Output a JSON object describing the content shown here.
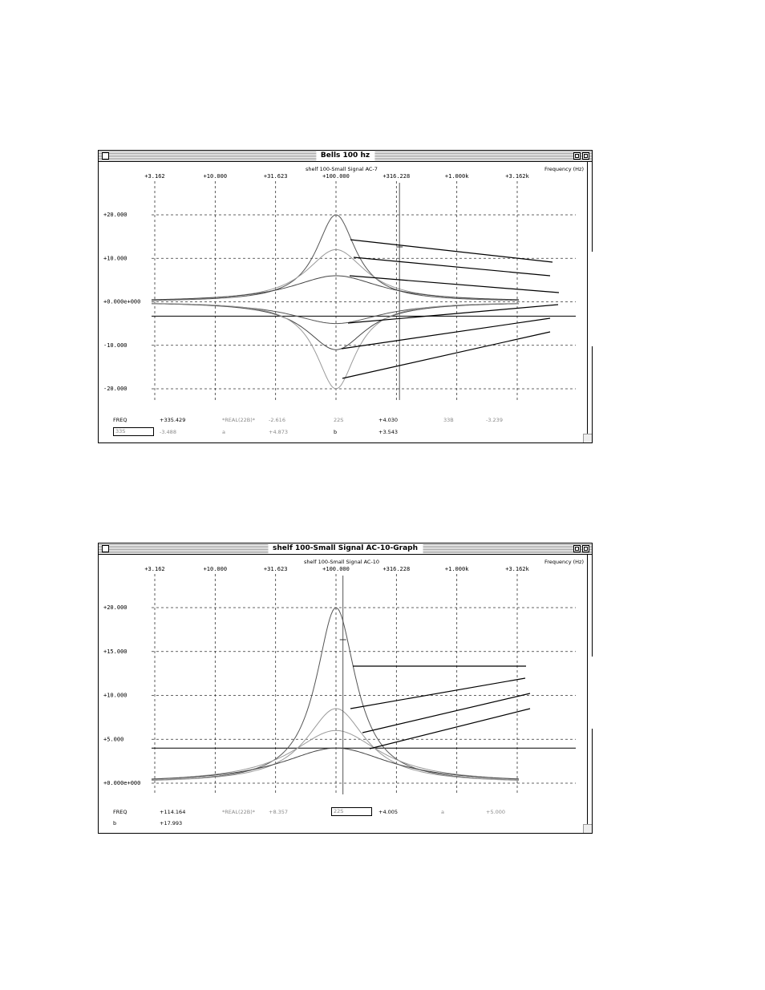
{
  "charts": [
    {
      "window_title": "Bells 100 hz",
      "subtitle": "shelf 100-Small Signal AC-7",
      "freq_label": "Frequency   (Hz)",
      "readout": {
        "row1": [
          "FREQ",
          "+335.429",
          "*REAL(22B)*",
          "-2.616",
          "22S",
          "+4.030",
          "33B",
          "-3.239"
        ],
        "row2": [
          "33S",
          "-3.488",
          "a",
          "+4.873",
          "b",
          "+3.543"
        ]
      },
      "chart_data": {
        "type": "line",
        "x_scale": "log",
        "xlim": [
          3.162,
          3162
        ],
        "ylim": [
          -20,
          20
        ],
        "x_tick_values": [
          3.162,
          10,
          31.623,
          100,
          316.228,
          1000,
          3162
        ],
        "x_tick_labels": [
          "+3.162",
          "+10.000",
          "+31.623",
          "+100.000",
          "+316.228",
          "+1.000k",
          "+3.162k"
        ],
        "y_tick_values": [
          20,
          10,
          0,
          -10,
          -20
        ],
        "y_tick_labels": [
          "+20.000",
          "+10.000",
          "+0.000e+000",
          "-10.000",
          "-20.000"
        ],
        "center_freq": 100,
        "series": [
          {
            "peak_db": 20,
            "width": 0.2,
            "color": "#555555"
          },
          {
            "peak_db": 12,
            "width": 0.3,
            "color": "#9a9a9a"
          },
          {
            "peak_db": 6,
            "width": 0.45,
            "color": "#444444"
          },
          {
            "peak_db": -5,
            "width": 0.45,
            "color": "#555555"
          },
          {
            "peak_db": -11,
            "width": 0.3,
            "color": "#444444"
          },
          {
            "peak_db": -20,
            "width": 0.2,
            "color": "#9a9a9a"
          }
        ],
        "reference_level_db": -3.3,
        "cursor_x": 335.429,
        "grid": true
      }
    },
    {
      "window_title": "shelf 100-Small Signal AC-10-Graph",
      "subtitle": "shelf 100-Small Signal AC-10",
      "freq_label": "Frequency   (Hz)",
      "readout": {
        "row1": [
          "FREQ",
          "+114.164",
          "*REAL(22B)*",
          "+8.357",
          "22S",
          "+4.005",
          "a",
          "+5.000"
        ],
        "row2": [
          "b",
          "+17.993"
        ]
      },
      "chart_data": {
        "type": "line",
        "x_scale": "log",
        "xlim": [
          3.162,
          3162
        ],
        "ylim": [
          0,
          20
        ],
        "x_tick_values": [
          3.162,
          10,
          31.623,
          100,
          316.228,
          1000,
          3162
        ],
        "x_tick_labels": [
          "+3.162",
          "+10.000",
          "+31.623",
          "+100.000",
          "+316.228",
          "+1.000k",
          "+3.162k"
        ],
        "y_tick_values": [
          20,
          15,
          10,
          5,
          0
        ],
        "y_tick_labels": [
          "+20.000",
          "+15.000",
          "+10.000",
          "+5.000",
          "+0.000e+000"
        ],
        "center_freq": 100,
        "series": [
          {
            "peak_db": 20,
            "width": 0.2,
            "color": "#555555"
          },
          {
            "peak_db": 8.5,
            "width": 0.3,
            "color": "#9a9a9a"
          },
          {
            "peak_db": 6,
            "width": 0.45,
            "color": "#9a9a9a"
          },
          {
            "peak_db": 4,
            "width": 0.55,
            "color": "#444444"
          }
        ],
        "reference_level_db": 4,
        "cursor_x": 114.164,
        "grid": true
      }
    }
  ],
  "colors": {
    "grid": "#333333",
    "axis": "#000000",
    "dim_text": "#8a8a8a"
  }
}
